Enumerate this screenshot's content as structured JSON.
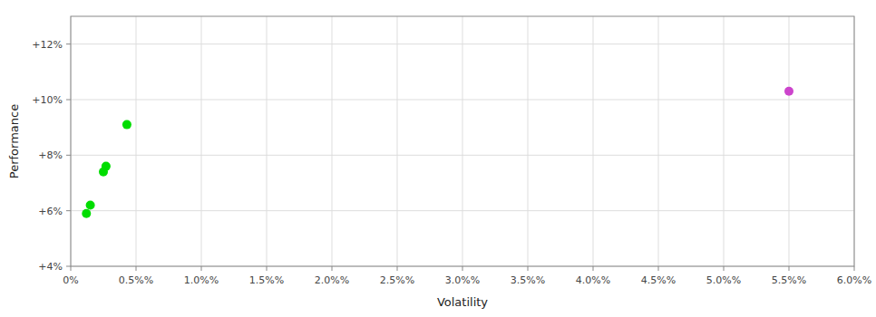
{
  "chart_data": {
    "type": "scatter",
    "xlabel": "Volatility",
    "ylabel": "Performance",
    "series": [
      {
        "color": "#00dd00",
        "x": [
          0.0043,
          0.0027,
          0.0025,
          0.0015,
          0.0012
        ],
        "values": [
          0.091,
          0.076,
          0.074,
          0.062,
          0.059
        ]
      },
      {
        "color": "#cc44cc",
        "x": [
          0.055
        ],
        "values": [
          0.103
        ]
      }
    ],
    "xlim": [
      0,
      0.06
    ],
    "ylim": [
      0.04,
      0.13
    ],
    "xticks": [
      {
        "value": 0.0,
        "label": "0%"
      },
      {
        "value": 0.005,
        "label": "0.5%%"
      },
      {
        "value": 0.01,
        "label": "1.0%%"
      },
      {
        "value": 0.015,
        "label": "1.5%%"
      },
      {
        "value": 0.02,
        "label": "2.0%%"
      },
      {
        "value": 0.025,
        "label": "2.5%%"
      },
      {
        "value": 0.03,
        "label": "3.0%%"
      },
      {
        "value": 0.035,
        "label": "3.5%%"
      },
      {
        "value": 0.04,
        "label": "4.0%%"
      },
      {
        "value": 0.045,
        "label": "4.5%%"
      },
      {
        "value": 0.05,
        "label": "5.0%%"
      },
      {
        "value": 0.055,
        "label": "5.5%%"
      },
      {
        "value": 0.06,
        "label": "6.0%%"
      }
    ],
    "yticks": [
      {
        "value": 0.04,
        "label": "+4%"
      },
      {
        "value": 0.06,
        "label": "+6%"
      },
      {
        "value": 0.08,
        "label": "+8%"
      },
      {
        "value": 0.1,
        "label": "+10%"
      },
      {
        "value": 0.12,
        "label": "+12%"
      }
    ],
    "grid": true
  }
}
